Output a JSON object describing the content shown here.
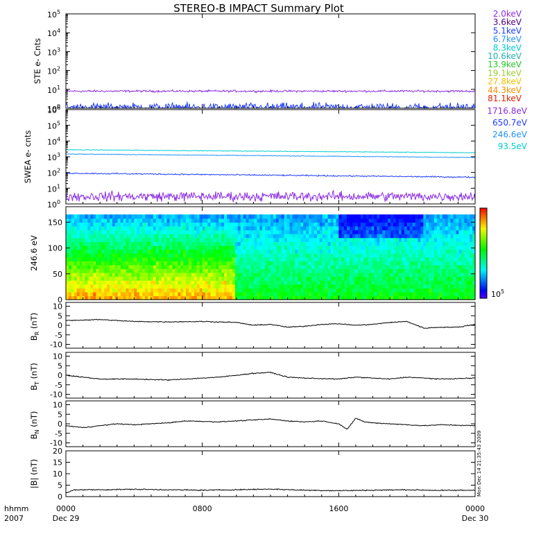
{
  "chart_data": {
    "title": "STEREO-B IMPACT Summary Plot",
    "stamp": "Mon Dec 14 21:35:43 2009",
    "time_axis": {
      "label_row1": "hhmm",
      "label_row2": "2007",
      "start": "2007-12-29 00:00",
      "end": "2007-12-30 00:00",
      "ticks": [
        {
          "time": "2007-12-29 00:00",
          "label": "0000",
          "sublabel": "Dec 29"
        },
        {
          "time": "2007-12-29 08:00",
          "label": "0800",
          "sublabel": ""
        },
        {
          "time": "2007-12-29 16:00",
          "label": "1600",
          "sublabel": ""
        },
        {
          "time": "2007-12-30 00:00",
          "label": "0000",
          "sublabel": "Dec 30"
        }
      ]
    },
    "legend_ste": [
      {
        "label": "2.0keV",
        "color": "#8a2be2"
      },
      {
        "label": "3.6keV",
        "color": "#4b0082"
      },
      {
        "label": "5.1keV",
        "color": "#1e3cff"
      },
      {
        "label": "6.7keV",
        "color": "#1e90ff"
      },
      {
        "label": "8.3keV",
        "color": "#00ced1"
      },
      {
        "label": "10.6keV",
        "color": "#20b2aa"
      },
      {
        "label": "13.9keV",
        "color": "#22cc22"
      },
      {
        "label": "19.1keV",
        "color": "#9acd32"
      },
      {
        "label": "27.8keV",
        "color": "#f0c000"
      },
      {
        "label": "44.3keV",
        "color": "#ff8c00"
      },
      {
        "label": "81.1keV",
        "color": "#e02000"
      }
    ],
    "legend_swea": [
      {
        "label": "1716.8eV",
        "color": "#8a2be2"
      },
      {
        "label": "650.7eV",
        "color": "#1e3cff"
      },
      {
        "label": "246.6eV",
        "color": "#1e90ff"
      },
      {
        "label": "93.5eV",
        "color": "#00ced1"
      }
    ],
    "panels": [
      {
        "id": "ste",
        "type": "line",
        "ylabel": "STE e- Cnts",
        "yscale": "log",
        "ylim_exp": [
          0,
          5
        ],
        "ytick_exponents": [
          0,
          1,
          2,
          3,
          4,
          5
        ],
        "series": [
          {
            "color": "#8a2be2",
            "level": 8,
            "noise": 0.08
          },
          {
            "color": "#1e3cff",
            "level": 1.1,
            "noise": 0.35
          }
        ]
      },
      {
        "id": "swea",
        "type": "line",
        "ylabel": "SWEA e- cnts",
        "yscale": "log",
        "ylim_exp": [
          0,
          6
        ],
        "ytick_exponents": [
          0,
          1,
          2,
          3,
          4,
          5,
          6
        ],
        "series": [
          {
            "color": "#00ced1",
            "start": 2800,
            "end": 1800,
            "noise": 0.03
          },
          {
            "color": "#1e90ff",
            "start": 1500,
            "end": 900,
            "noise": 0.03
          },
          {
            "color": "#1e3cff",
            "start": 90,
            "end": 50,
            "noise": 0.06
          },
          {
            "color": "#8a2be2",
            "level": 3,
            "noise": 0.45
          }
        ]
      },
      {
        "id": "pad",
        "type": "heatmap",
        "ylabel": "246.6 eV",
        "ylim": [
          0,
          180
        ],
        "yticks": [
          0,
          50,
          100,
          150
        ],
        "colorbar_label_base": "10",
        "colorbar_label_exp": "5"
      },
      {
        "id": "br",
        "type": "line",
        "ylabel": "B",
        "ylabel_sub": "R",
        "ylabel_unit": "(nT)",
        "ylim": [
          -12,
          12
        ],
        "yticks": [
          -10,
          -5,
          0,
          5,
          10
        ],
        "series": [
          {
            "color": "#000000",
            "knots": [
              [
                0,
                2.5
              ],
              [
                2,
                3
              ],
              [
                4,
                2
              ],
              [
                6,
                1.8
              ],
              [
                8,
                2
              ],
              [
                10,
                1.5
              ],
              [
                11,
                0
              ],
              [
                12,
                0.5
              ],
              [
                13,
                -1
              ],
              [
                14,
                -0.5
              ],
              [
                15,
                0.5
              ],
              [
                16,
                0.8
              ],
              [
                17,
                0
              ],
              [
                18,
                0.5
              ],
              [
                19,
                1.5
              ],
              [
                20,
                2
              ],
              [
                21,
                -1.5
              ],
              [
                22,
                -1
              ],
              [
                23,
                -1
              ],
              [
                24,
                0.5
              ]
            ]
          }
        ]
      },
      {
        "id": "bt",
        "type": "line",
        "ylabel": "B",
        "ylabel_sub": "T",
        "ylabel_unit": "(nT)",
        "ylim": [
          -12,
          12
        ],
        "yticks": [
          -10,
          -5,
          0,
          5,
          10
        ],
        "series": [
          {
            "color": "#000000",
            "knots": [
              [
                0,
                0
              ],
              [
                1,
                -1
              ],
              [
                2,
                -2
              ],
              [
                4,
                -2
              ],
              [
                6,
                -2.5
              ],
              [
                8,
                -1.5
              ],
              [
                9,
                -1
              ],
              [
                10,
                0
              ],
              [
                11,
                1
              ],
              [
                12,
                1.5
              ],
              [
                13,
                -1
              ],
              [
                14,
                -1.5
              ],
              [
                16,
                -2
              ],
              [
                17,
                -1
              ],
              [
                18,
                -1.5
              ],
              [
                19,
                -2
              ],
              [
                20,
                -1
              ],
              [
                21,
                -1.5
              ],
              [
                22,
                -2
              ],
              [
                24,
                -1.5
              ]
            ]
          }
        ]
      },
      {
        "id": "bn",
        "type": "line",
        "ylabel": "B",
        "ylabel_sub": "N",
        "ylabel_unit": "(nT)",
        "ylim": [
          -12,
          12
        ],
        "yticks": [
          -10,
          -5,
          0,
          5,
          10
        ],
        "series": [
          {
            "color": "#000000",
            "knots": [
              [
                0,
                -1
              ],
              [
                1,
                -2
              ],
              [
                2,
                -1
              ],
              [
                3,
                0
              ],
              [
                4,
                -0.5
              ],
              [
                5,
                0
              ],
              [
                6,
                0.5
              ],
              [
                7,
                1.5
              ],
              [
                9,
                1
              ],
              [
                10,
                1.5
              ],
              [
                11,
                2
              ],
              [
                12,
                2.5
              ],
              [
                13,
                1.5
              ],
              [
                14,
                1
              ],
              [
                15,
                1.5
              ],
              [
                16,
                0
              ],
              [
                16.5,
                -3
              ],
              [
                17,
                3
              ],
              [
                17.5,
                1
              ],
              [
                18,
                0.5
              ],
              [
                20,
                -0.5
              ],
              [
                21,
                -1
              ],
              [
                22,
                -0.5
              ],
              [
                24,
                -1
              ]
            ]
          }
        ]
      },
      {
        "id": "bmag",
        "type": "line",
        "ylabel": "|B| (nT)",
        "ylim": [
          0,
          20
        ],
        "yticks": [
          0,
          5,
          10,
          15,
          20
        ],
        "series": [
          {
            "color": "#000000",
            "knots": [
              [
                0,
                1.5
              ],
              [
                0.5,
                3
              ],
              [
                2,
                3
              ],
              [
                4,
                3.2
              ],
              [
                8,
                2.8
              ],
              [
                10,
                3
              ],
              [
                12,
                3.3
              ],
              [
                14,
                2.8
              ],
              [
                16,
                2.6
              ],
              [
                18,
                2.8
              ],
              [
                20,
                3
              ],
              [
                22,
                2.7
              ],
              [
                24,
                2.8
              ]
            ]
          }
        ]
      }
    ]
  }
}
